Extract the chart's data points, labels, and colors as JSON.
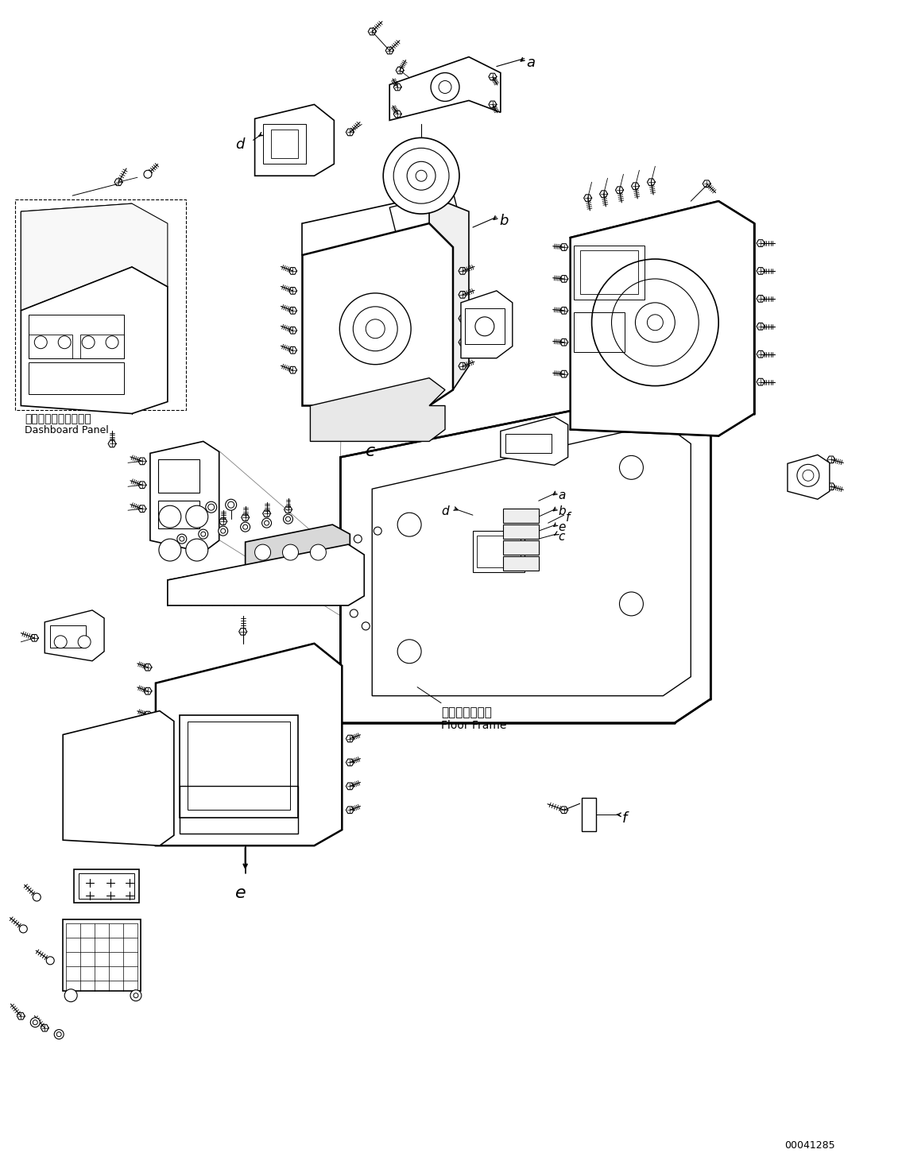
{
  "title": "",
  "bg_color": "#ffffff",
  "diagram_color": "#000000",
  "part_number": "00041285",
  "labels": {
    "dashboard_jp": "ダッシュボードパネル",
    "dashboard_en": "Dashboard Panel",
    "floor_jp": "フロアフレーム",
    "floor_en": "Floor Frame"
  },
  "fig_width": 11.35,
  "fig_height": 14.56,
  "dpi": 100
}
